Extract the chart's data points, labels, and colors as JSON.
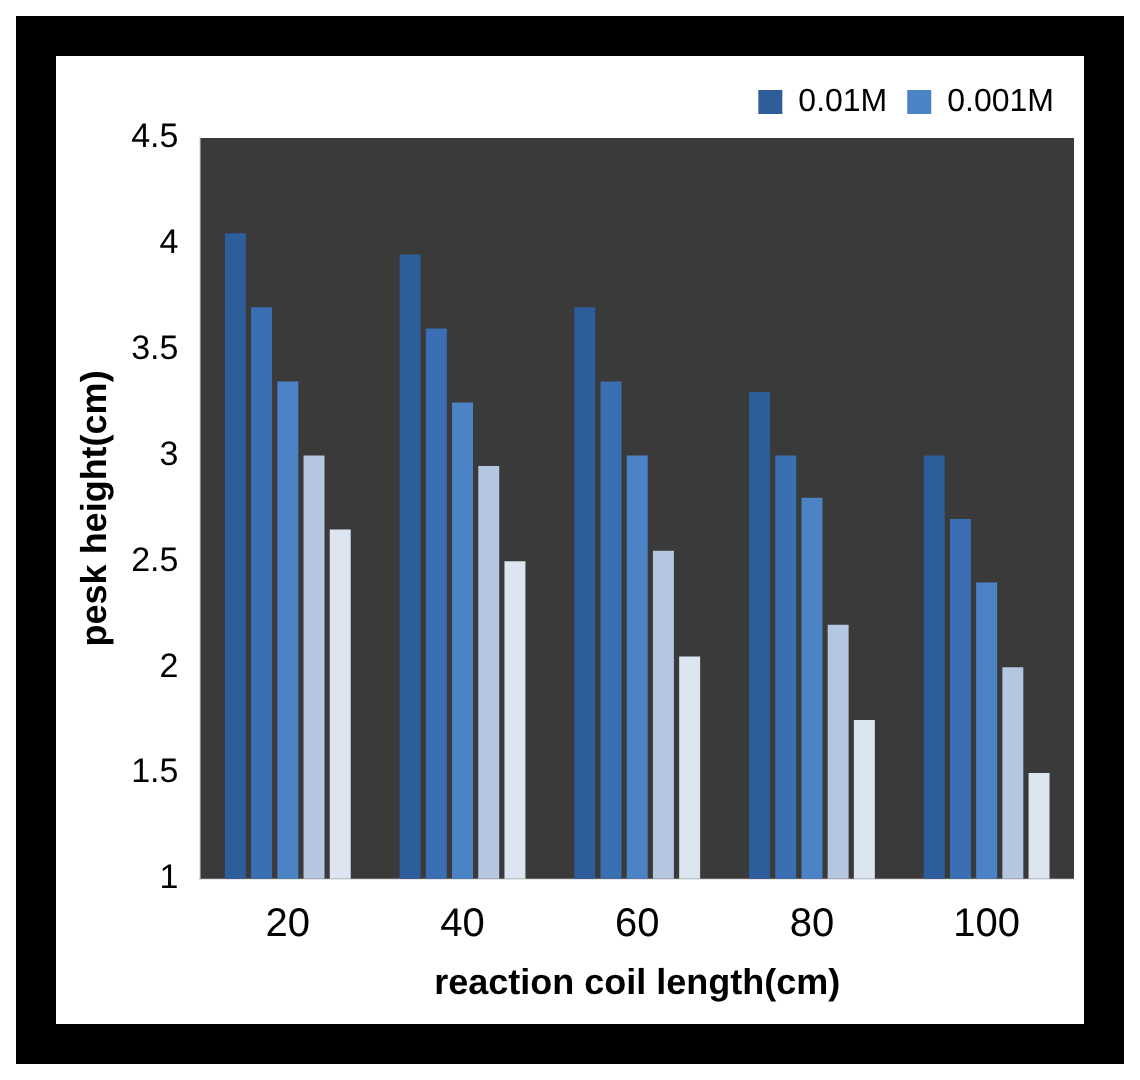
{
  "chart_data": {
    "type": "bar",
    "xlabel": "reaction coil length(cm)",
    "ylabel": "pesk height(cm)",
    "categories": [
      "20",
      "40",
      "60",
      "80",
      "100"
    ],
    "series": [
      {
        "name": "0.01M",
        "color": "#2e5d9c",
        "values": [
          4.05,
          3.95,
          3.7,
          3.3,
          3.0
        ]
      },
      {
        "color": "#3a6fb3",
        "values": [
          3.7,
          3.6,
          3.35,
          3.0,
          2.7
        ]
      },
      {
        "name": "0.001M",
        "color": "#4c82c6",
        "values": [
          3.35,
          3.25,
          3.0,
          2.8,
          2.4
        ]
      },
      {
        "color": "#b5c6e0",
        "values": [
          3.0,
          2.95,
          2.55,
          2.2,
          2.0
        ]
      },
      {
        "color": "#dde5f1",
        "values": [
          2.65,
          2.5,
          2.05,
          1.75,
          1.5
        ]
      }
    ],
    "ylim": [
      1,
      4.5
    ],
    "yticks": [
      1,
      1.5,
      2,
      2.5,
      3,
      3.5,
      4,
      4.5
    ],
    "grid": false,
    "legend": "top right"
  }
}
